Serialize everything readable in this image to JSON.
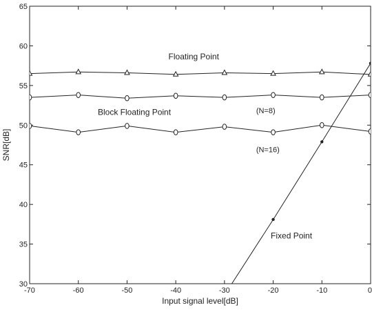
{
  "chart_data": {
    "type": "line",
    "xlabel": "Input signal level[dB]",
    "ylabel": "SNR[dB]",
    "xlim": [
      -70,
      0
    ],
    "ylim": [
      30,
      65
    ],
    "xticks": [
      -70,
      -60,
      -50,
      -40,
      -30,
      -20,
      -10,
      0
    ],
    "yticks": [
      30,
      35,
      40,
      45,
      50,
      55,
      60,
      65
    ],
    "grid": false,
    "legend": "none",
    "series": [
      {
        "key": "floating",
        "marker": "triangle",
        "color": "#222222",
        "points": [
          [
            -70,
            56.5
          ],
          [
            -60,
            56.7
          ],
          [
            -50,
            56.6
          ],
          [
            -40,
            56.4
          ],
          [
            -30,
            56.6
          ],
          [
            -20,
            56.5
          ],
          [
            -10,
            56.7
          ],
          [
            0,
            56.4
          ]
        ]
      },
      {
        "key": "bfp_n8",
        "marker": "diamond",
        "color": "#222222",
        "points": [
          [
            -70,
            53.5
          ],
          [
            -60,
            53.8
          ],
          [
            -50,
            53.4
          ],
          [
            -40,
            53.7
          ],
          [
            -30,
            53.5
          ],
          [
            -20,
            53.8
          ],
          [
            -10,
            53.5
          ],
          [
            0,
            53.8
          ]
        ]
      },
      {
        "key": "bfp_n16",
        "marker": "diamond",
        "color": "#222222",
        "points": [
          [
            -70,
            49.9
          ],
          [
            -60,
            49.1
          ],
          [
            -50,
            49.9
          ],
          [
            -40,
            49.1
          ],
          [
            -30,
            49.8
          ],
          [
            -20,
            49.1
          ],
          [
            -10,
            50.0
          ],
          [
            0,
            49.2
          ]
        ]
      },
      {
        "key": "fixed",
        "marker": "dot",
        "color": "#222222",
        "points": [
          [
            -28.5,
            30
          ],
          [
            -20,
            38.1
          ],
          [
            -10,
            47.9
          ],
          [
            0,
            57.8
          ]
        ],
        "marker_points": [
          [
            -20,
            38.1
          ],
          [
            -10,
            47.9
          ],
          [
            0,
            57.8
          ]
        ]
      }
    ],
    "annotations": [
      {
        "text": "Floating Point",
        "x": -41.5,
        "y": 58.3,
        "size": "normal"
      },
      {
        "text": "(N=8)",
        "x": -23.5,
        "y": 51.5,
        "size": "small"
      },
      {
        "text": "Block Floating Point",
        "x": -56,
        "y": 51.3,
        "size": "normal"
      },
      {
        "text": "(N=16)",
        "x": -23.5,
        "y": 46.6,
        "size": "small"
      },
      {
        "text": "Fixed Point",
        "x": -20.5,
        "y": 35.7,
        "size": "normal"
      }
    ]
  }
}
